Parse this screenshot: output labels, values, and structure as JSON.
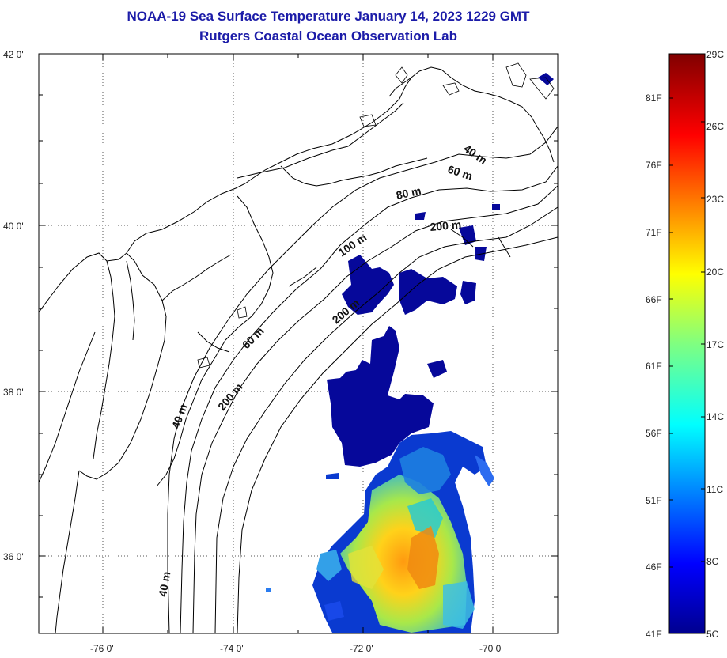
{
  "header": {
    "title": "NOAA-19 Sea Surface Temperature January 14, 2023 1229 GMT",
    "subtitle": "Rutgers Coastal Ocean Observation Lab"
  },
  "map": {
    "lat_labels": [
      "42 0'",
      "40 0'",
      "38 0'",
      "36 0'"
    ],
    "lon_labels": [
      "-76 0'",
      "-74 0'",
      "-72 0'",
      "-70 0'"
    ],
    "contour_labels": [
      {
        "text": "40 m",
        "key": "c40a"
      },
      {
        "text": "60 m",
        "key": "c60a"
      },
      {
        "text": "80 m",
        "key": "c80a"
      },
      {
        "text": "200 m",
        "key": "c200a"
      },
      {
        "text": "100 m",
        "key": "c100a"
      },
      {
        "text": "200 m",
        "key": "c200b"
      },
      {
        "text": "60 m",
        "key": "c60b"
      },
      {
        "text": "200 m",
        "key": "c200c"
      },
      {
        "text": "40 m",
        "key": "c40b"
      },
      {
        "text": "40 m",
        "key": "c40c"
      }
    ],
    "grid": "dotted",
    "land_color": "#ffffff",
    "coastline_color": "#000000"
  },
  "colorbar": {
    "celsius_labels": [
      "29C",
      "26C",
      "23C",
      "20C",
      "17C",
      "14C",
      "11C",
      "8C",
      "5C"
    ],
    "fahrenheit_labels": [
      "81F",
      "76F",
      "71F",
      "66F",
      "61F",
      "56F",
      "51F",
      "46F",
      "41F"
    ],
    "colormap": "jet",
    "min_c": 5,
    "max_c": 29
  }
}
